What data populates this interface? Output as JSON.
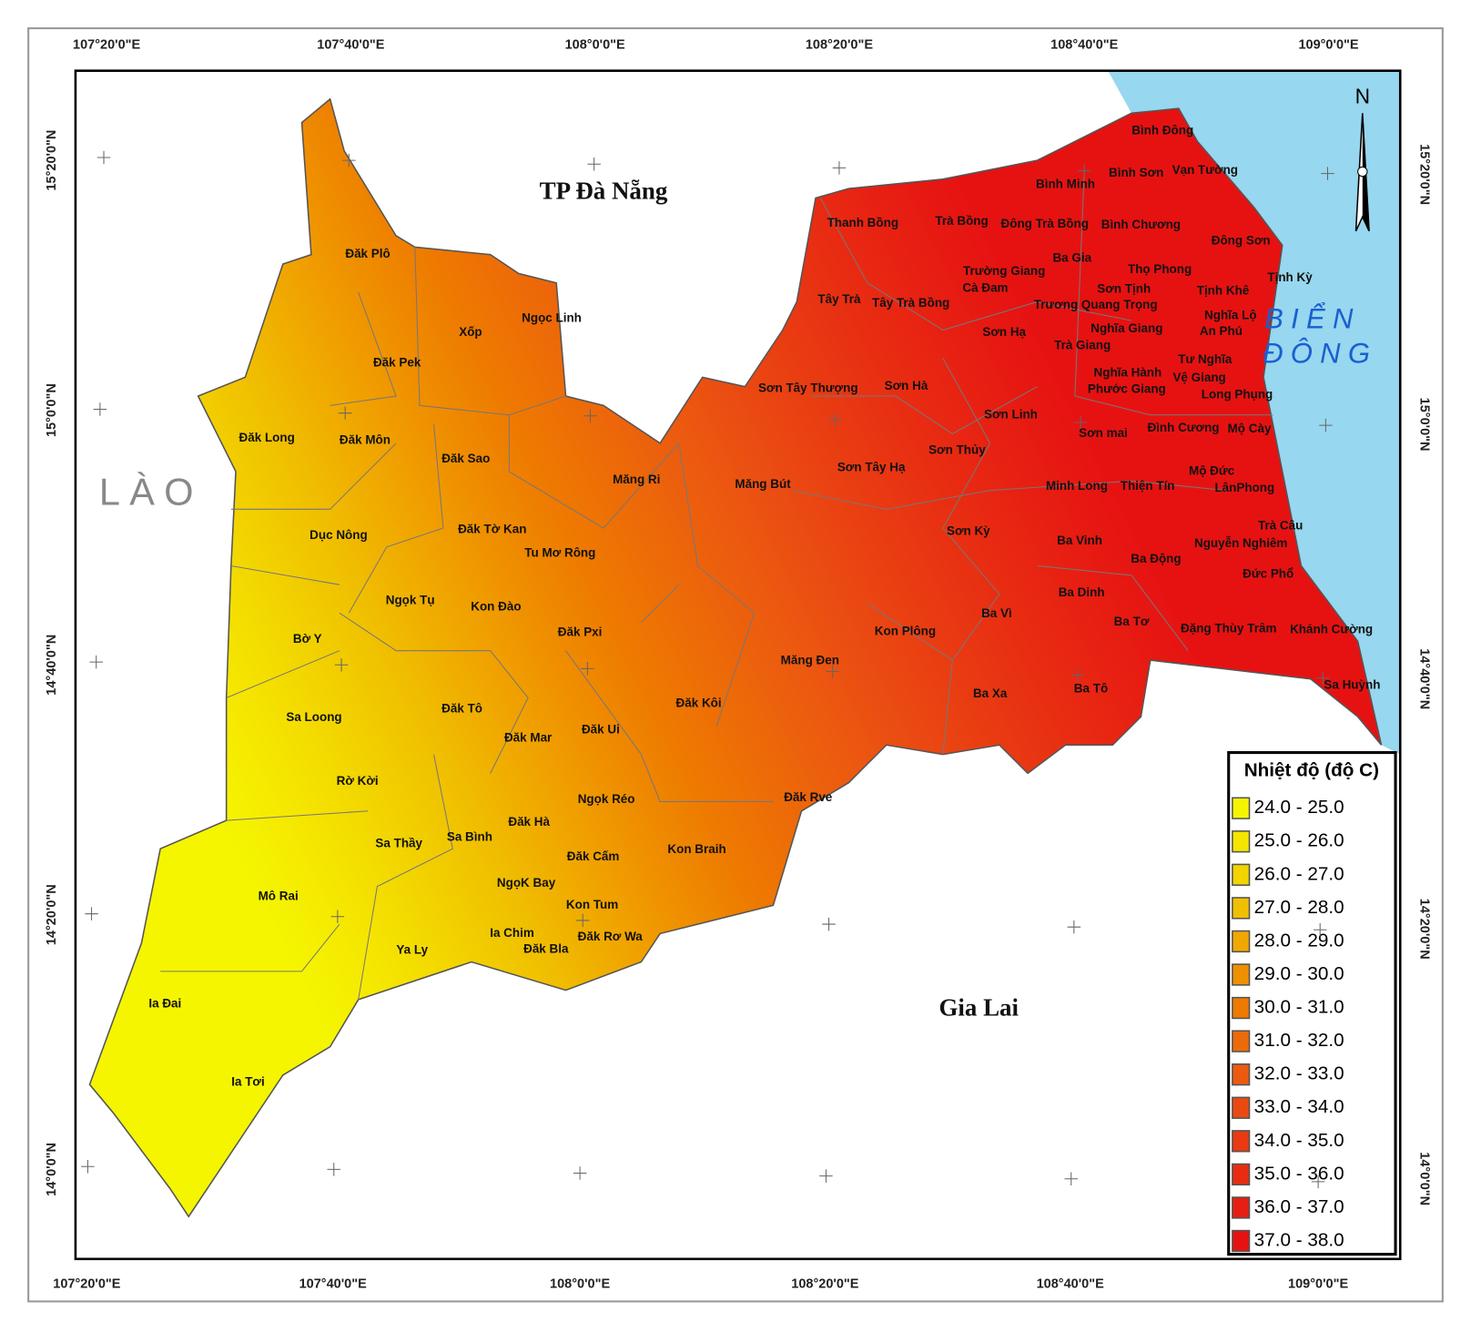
{
  "map": {
    "top_ticks": [
      "107°20'0\"E",
      "107°40'0\"E",
      "108°0'0\"E",
      "108°20'0\"E",
      "108°40'0\"E",
      "109°0'0\"E"
    ],
    "bottom_ticks": [
      "107°20'0\"E",
      "107°40'0\"E",
      "108°0'0\"E",
      "108°20'0\"E",
      "108°40'0\"E",
      "109°0'0\"E"
    ],
    "left_ticks": [
      "15°20'0\"N",
      "15°0'0\"N",
      "14°40'0\"N",
      "14°20'0\"N",
      "14°0'0\"N"
    ],
    "right_ticks": [
      "15°20'0\"N",
      "15°0'0\"N",
      "14°40'0\"N",
      "14°20'0\"N",
      "14°0'0\"N"
    ],
    "regions": [
      "TP Đà Nẵng",
      "LÀO",
      "Gia Lai"
    ],
    "sea_label": [
      "BIỂN",
      "ĐÔNG"
    ],
    "north": "N",
    "communes": [
      "Bình Đông",
      "Bình Minh",
      "Bình Sơn",
      "Vạn Tường",
      "Thanh Bồng",
      "Trà Bồng",
      "Đông Trà Bồng",
      "Bình Chương",
      "Đông Sơn",
      "Ba Gia",
      "Thọ Phong",
      "Trường Giang",
      "Cà Đam",
      "Sơn Tịnh",
      "Tịnh Khê",
      "Tịnh Kỳ",
      "Tây Trà",
      "Tây Trà Bồng",
      "Trương Quang Trọng",
      "Nghĩa Lộ",
      "Sơn Hạ",
      "Nghĩa Giang",
      "An Phú",
      "Trà Giang",
      "Tư Nghĩa",
      "Nghĩa Hành",
      "Vệ Giang",
      "Sơn Tây Thượng",
      "Sơn Hà",
      "Phước Giang",
      "Long Phụng",
      "Sơn Linh",
      "Sơn mai",
      "Đình Cương",
      "Mộ Cày",
      "Sơn Thủy",
      "Sơn Tây Hạ",
      "Mộ Đức",
      "Minh Long",
      "Thiện Tín",
      "LânPhong",
      "Trà Câu",
      "Sơn Kỳ",
      "Ba Vinh",
      "Nguyễn Nghiêm",
      "Ba Động",
      "Đức Phổ",
      "Ba Dinh",
      "Ba Vì",
      "Ba Tơ",
      "Đặng Thùy Trâm",
      "Khánh Cường",
      "Kon Plông",
      "Ba Xa",
      "Ba Tô",
      "Sa Huỳnh",
      "Đăk Plô",
      "Ngọc Linh",
      "Xốp",
      "Đăk Pek",
      "Đăk Long",
      "Đăk Môn",
      "Đăk Sao",
      "Măng Ri",
      "Măng Bút",
      "Đăk Tờ Kan",
      "Dục Nông",
      "Tu Mơ Rông",
      "Ngọk Tụ",
      "Kon Đào",
      "Đăk Pxi",
      "Bờ Y",
      "Măng Đen",
      "Đăk Kôi",
      "Đăk Tô",
      "Sa Loong",
      "Đăk Mar",
      "Đăk Ui",
      "Rờ Kời",
      "Ngọk Réo",
      "Đăk Rve",
      "Đăk Hà",
      "Sa Thầy",
      "Sa Bình",
      "Kon Braih",
      "Đăk Cấm",
      "NgọK Bay",
      "Mô Rai",
      "Kon Tum",
      "Ia Chim",
      "Đăk Rơ Wa",
      "Đăk Bla",
      "Ya Ly",
      "Ia Đai",
      "Ia Tơi"
    ],
    "legend": {
      "title": "Nhiệt độ (độ C)",
      "classes": [
        {
          "label": "24.0 - 25.0",
          "color": "#f5f500"
        },
        {
          "label": "25.0 - 26.0",
          "color": "#f5e600"
        },
        {
          "label": "26.0 - 27.0",
          "color": "#f2d400"
        },
        {
          "label": "27.0 - 28.0",
          "color": "#f0c000"
        },
        {
          "label": "28.0 - 29.0",
          "color": "#f0a800"
        },
        {
          "label": "29.0 - 30.0",
          "color": "#ef9000"
        },
        {
          "label": "30.0 - 31.0",
          "color": "#ee7a00"
        },
        {
          "label": "31.0 - 32.0",
          "color": "#ed6a08"
        },
        {
          "label": "32.0 - 33.0",
          "color": "#ec5a10"
        },
        {
          "label": "33.0 - 34.0",
          "color": "#ea4a12"
        },
        {
          "label": "34.0 - 35.0",
          "color": "#e93a12"
        },
        {
          "label": "35.0 - 36.0",
          "color": "#e82c12"
        },
        {
          "label": "36.0 - 37.0",
          "color": "#e71e12"
        },
        {
          "label": "37.0 - 38.0",
          "color": "#e61212"
        }
      ]
    }
  }
}
